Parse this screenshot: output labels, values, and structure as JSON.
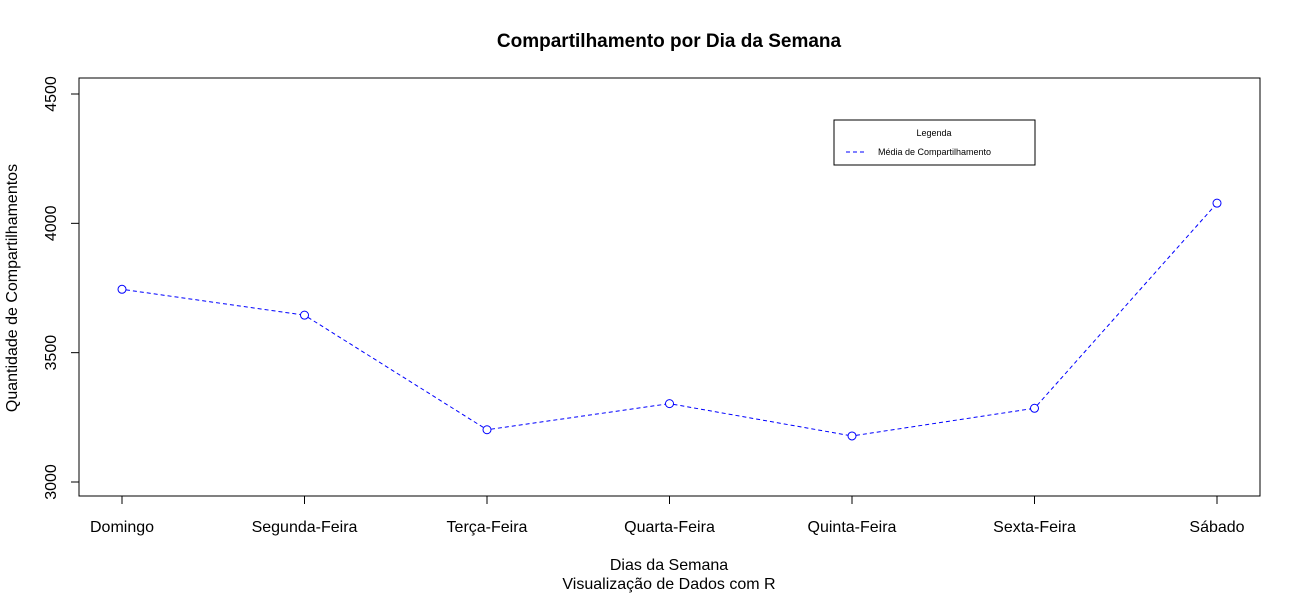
{
  "chart_data": {
    "type": "line",
    "title": "Compartilhamento por Dia da Semana",
    "xlabel": "Dias da Semana",
    "subtitle": "Visualização de Dados com R",
    "ylabel": "Quantidade de Compartilhamentos",
    "categories": [
      "Domingo",
      "Segunda-Feira",
      "Terça-Feira",
      "Quarta-Feira",
      "Quinta-Feira",
      "Sexta-Feira",
      "Sábado"
    ],
    "series": [
      {
        "name": "Média de Compartilhamento",
        "values": [
          3745,
          3645,
          3202,
          3303,
          3178,
          3285,
          4078
        ],
        "color": "#0000ff",
        "line_style": "dashed",
        "marker": "open-circle"
      }
    ],
    "ylim": [
      3000,
      4500
    ],
    "yticks": [
      "3000",
      "3500",
      "4000",
      "4500"
    ],
    "grid": false,
    "legend": {
      "title": "Legenda",
      "placement": "top-right"
    }
  }
}
